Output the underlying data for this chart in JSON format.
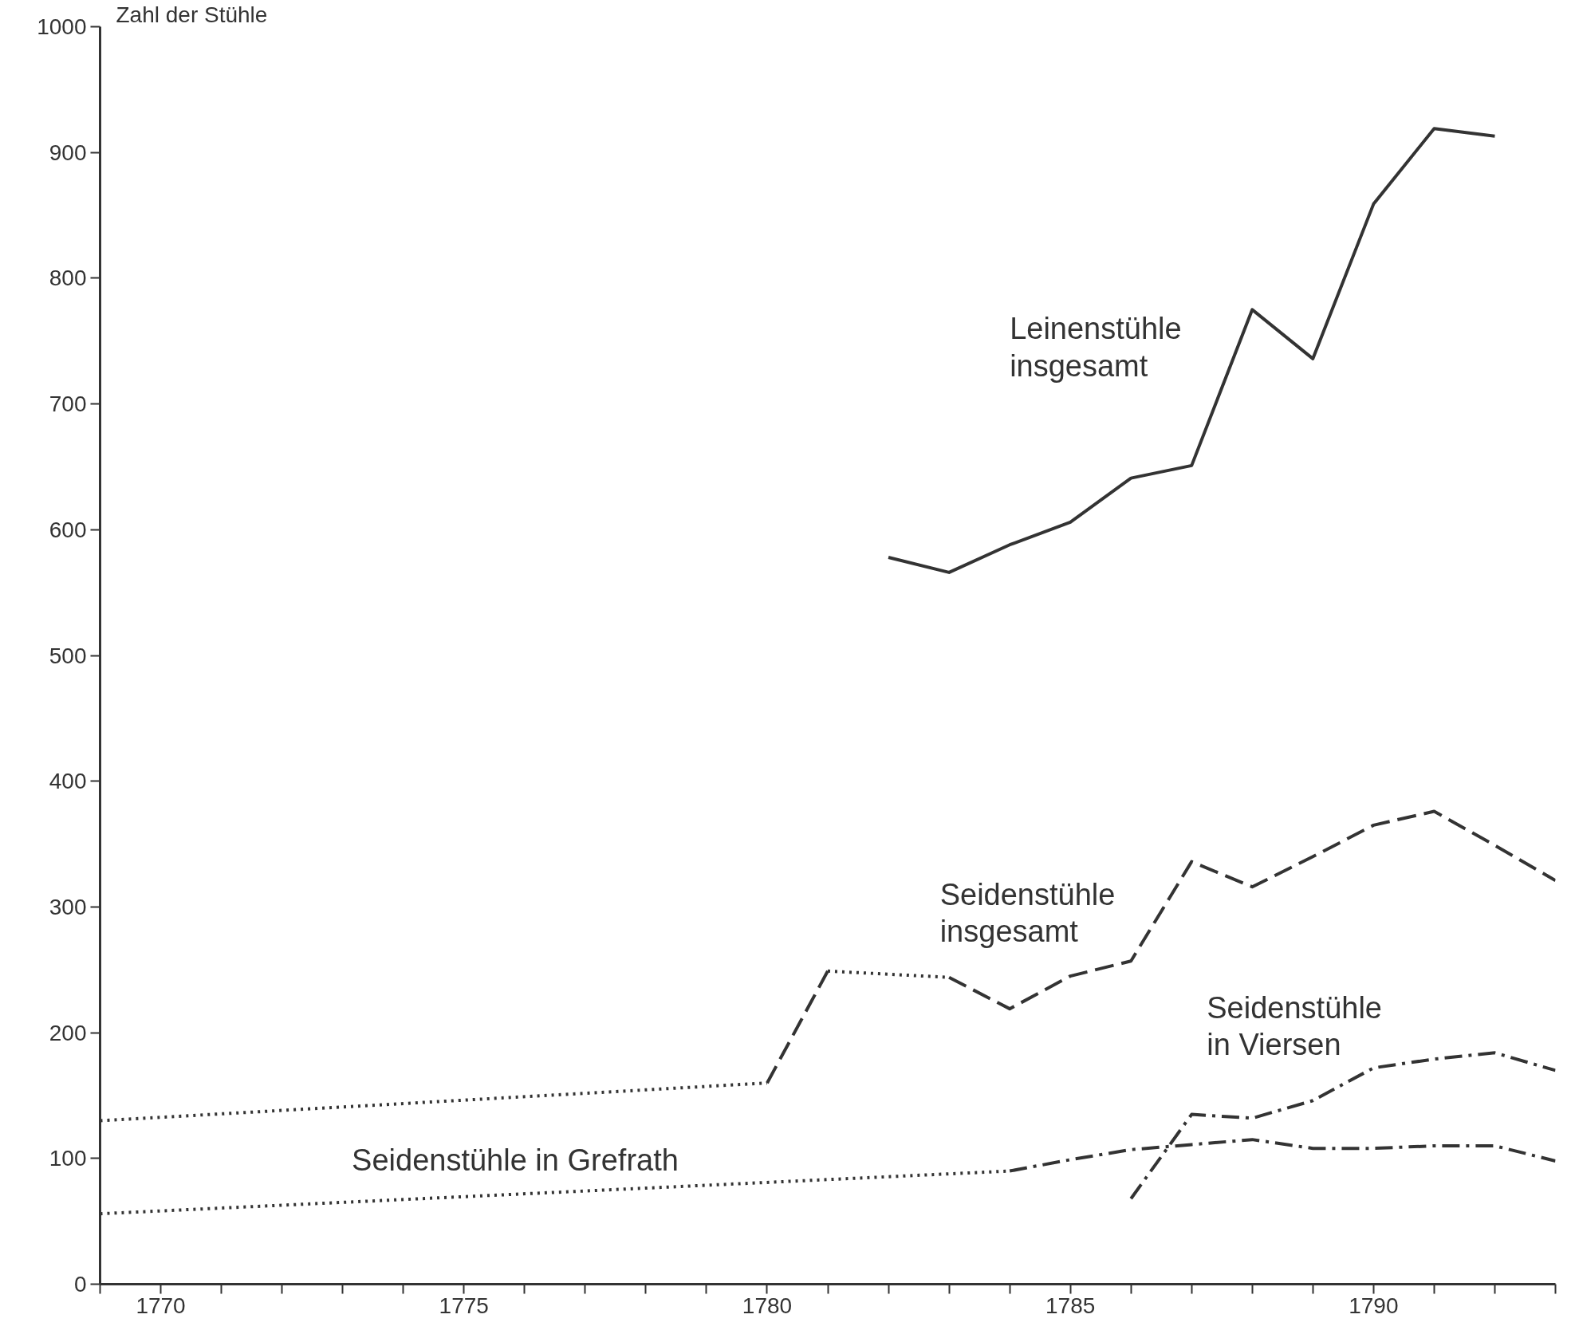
{
  "chart_data": {
    "type": "line",
    "ylabel": "Zahl der Stühle",
    "xlim": [
      1769,
      1793
    ],
    "ylim": [
      0,
      1000
    ],
    "xticks": [
      {
        "value": 1769,
        "label": null
      },
      1770,
      {
        "value": 1771,
        "label": null
      },
      {
        "value": 1772,
        "label": null
      },
      {
        "value": 1773,
        "label": null
      },
      {
        "value": 1774,
        "label": null
      },
      1775,
      {
        "value": 1776,
        "label": null
      },
      {
        "value": 1777,
        "label": null
      },
      {
        "value": 1778,
        "label": null
      },
      {
        "value": 1779,
        "label": null
      },
      1780,
      {
        "value": 1781,
        "label": null
      },
      {
        "value": 1782,
        "label": null
      },
      {
        "value": 1783,
        "label": null
      },
      {
        "value": 1784,
        "label": null
      },
      1785,
      {
        "value": 1786,
        "label": null
      },
      {
        "value": 1787,
        "label": null
      },
      {
        "value": 1788,
        "label": null
      },
      {
        "value": 1789,
        "label": null
      },
      1790,
      {
        "value": 1791,
        "label": null
      },
      {
        "value": 1792,
        "label": null
      },
      {
        "value": 1793,
        "label": null
      }
    ],
    "yticks": [
      0,
      100,
      200,
      300,
      400,
      500,
      600,
      700,
      800,
      900,
      1000
    ],
    "grid": false,
    "marker": "none",
    "series": [
      {
        "name": "Leinenstühle\ninsgesamt",
        "color": "#333333",
        "line_style": "solid",
        "x": [
          1782,
          1783,
          1784,
          1785,
          1786,
          1787,
          1788,
          1789,
          1790,
          1791,
          1792
        ],
        "values": [
          578,
          566,
          588,
          606,
          641,
          651,
          775,
          736,
          859,
          919,
          913
        ]
      },
      {
        "name": "Seidenstühle\ninsgesamt",
        "color": "#333333",
        "line_style": [
          "dotted",
          "dashed",
          "dotted",
          "dashed",
          "dashed",
          "dashed",
          "dashed",
          "dashed",
          "dashed",
          "dashed",
          "dashed",
          "dashed",
          "dashed"
        ],
        "x": [
          1769,
          1780,
          1781,
          1783,
          1784,
          1785,
          1786,
          1787,
          1788,
          1789,
          1790,
          1791,
          1792,
          1793
        ],
        "values": [
          130,
          160,
          249,
          244,
          219,
          245,
          257,
          336,
          316,
          340,
          365,
          376,
          349,
          321
        ]
      },
      {
        "name": "Seidenstühle in Grefrath",
        "color": "#333333",
        "line_style": [
          "dotted",
          "dashdot",
          "dashdot",
          "dashdot",
          "dashdot",
          "dashdot",
          "dashdot",
          "dashdot",
          "dashdot",
          "dashdot"
        ],
        "x": [
          1769,
          1784,
          1785,
          1786,
          1787,
          1788,
          1789,
          1790,
          1791,
          1792,
          1793
        ],
        "values": [
          56,
          90,
          99,
          107,
          111,
          115,
          108,
          108,
          110,
          110,
          98
        ]
      },
      {
        "name": "Seidenstühle\nin Viersen",
        "color": "#333333",
        "line_style": "dashdot",
        "x": [
          1786,
          1787,
          1788,
          1789,
          1790,
          1791,
          1792,
          1793
        ],
        "values": [
          68,
          135,
          132,
          146,
          172,
          179,
          184,
          170
        ]
      }
    ]
  }
}
